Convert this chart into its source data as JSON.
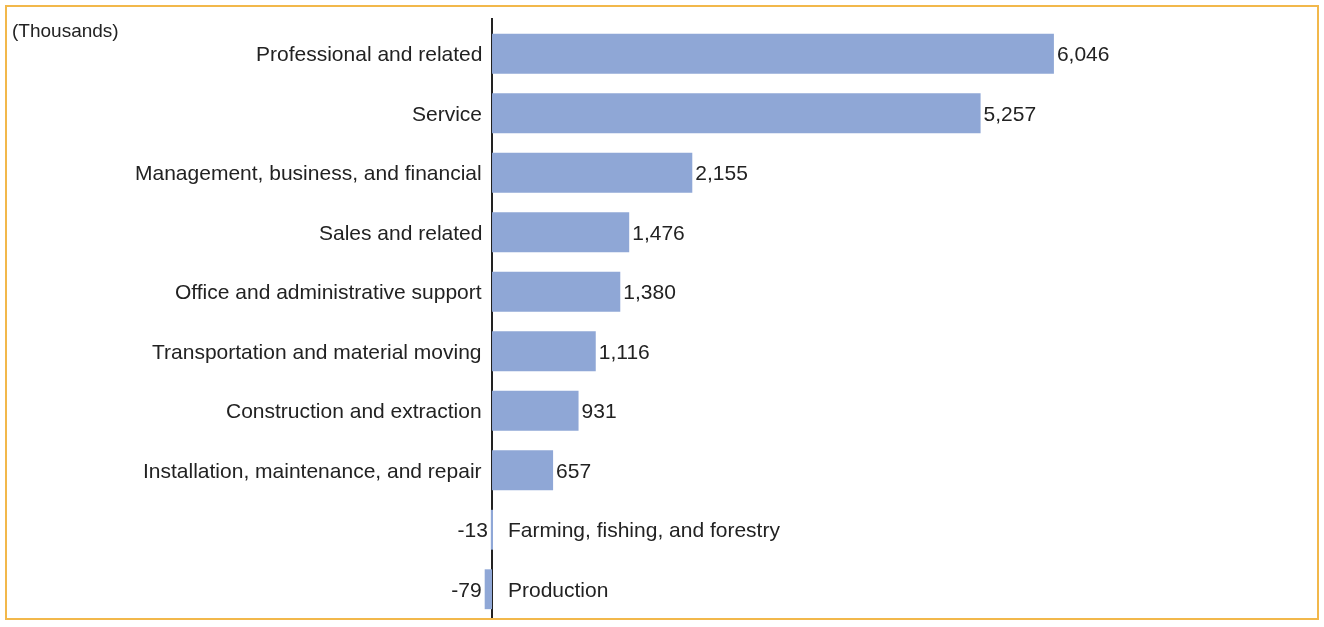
{
  "chart_data": {
    "type": "bar",
    "orientation": "horizontal",
    "value_labels": [
      "6,046",
      "5,257",
      "2,155",
      "1,476",
      "1,380",
      "1,116",
      "931",
      "657",
      "-13",
      "-79"
    ],
    "annotations": [
      "(Thousands)"
    ],
    "color": "#8fa7d6",
    "categories": [
      "Professional and related",
      "Service",
      "Management, business, and financial",
      "Sales and related",
      "Office and administrative support",
      "Transportation and material moving",
      "Construction and extraction",
      "Installation, maintenance, and repair",
      "Farming, fishing, and forestry",
      "Production"
    ],
    "values": [
      6046,
      5257,
      2155,
      1476,
      1380,
      1116,
      931,
      657,
      -13,
      -79
    ]
  }
}
